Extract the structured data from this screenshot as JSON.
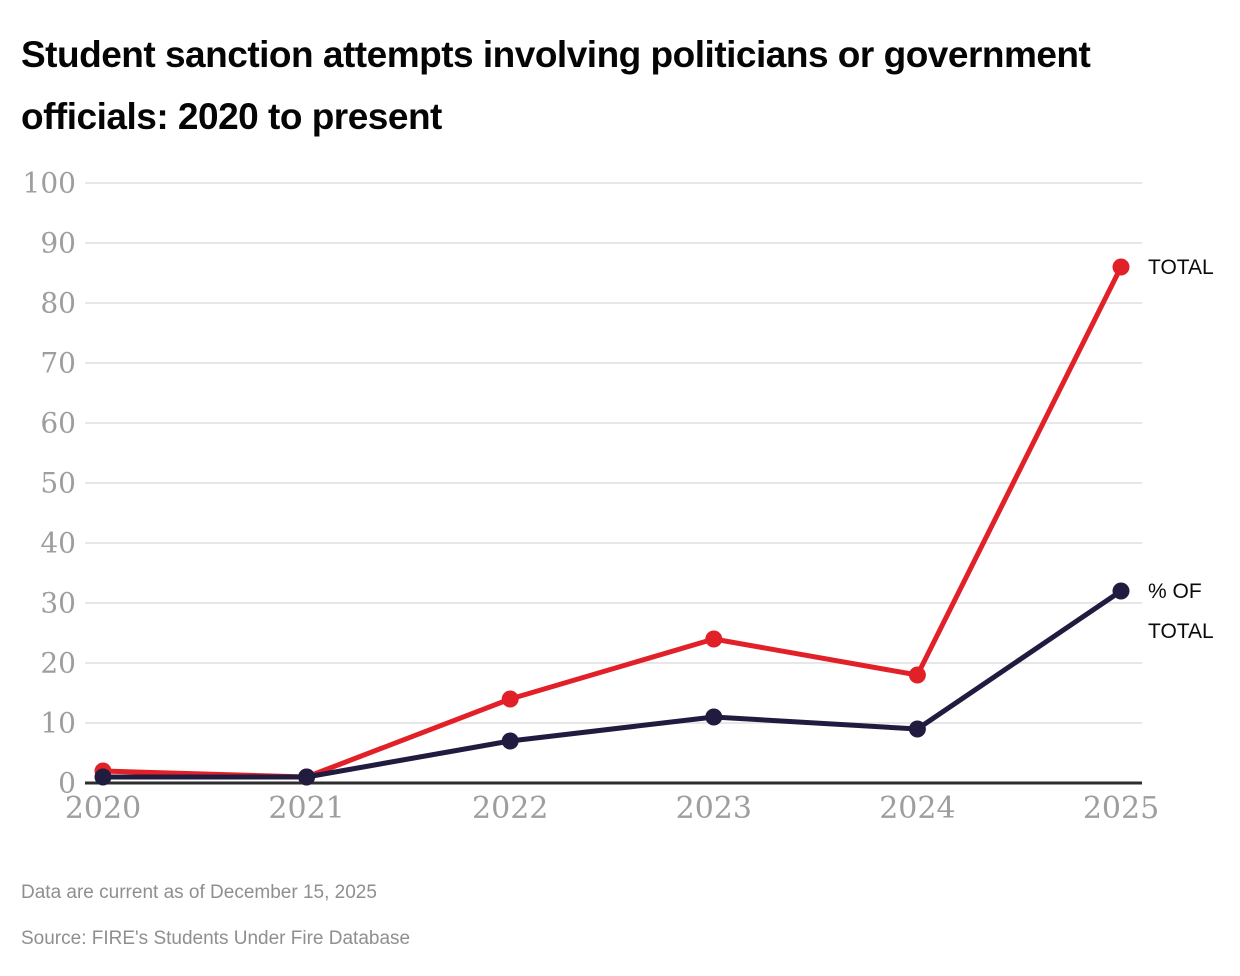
{
  "title": "Student sanction attempts involving politicians or government officials: 2020 to present",
  "footer": {
    "data_note": "Data are current as of December 15, 2025",
    "source_note": "Source: FIRE's Students Under Fire Database"
  },
  "colors": {
    "total_line": "#e22028",
    "pct_line": "#221b40",
    "gridline": "#e7e7e7",
    "axis_line": "#2e2e2e",
    "tick_label": "#9e9e9e",
    "series_label": "#0a0a0a",
    "title_text": "#050505",
    "footer_text": "#8f8f8f"
  },
  "chart_data": {
    "type": "line",
    "title": "Student sanction attempts involving politicians or government officials: 2020 to present",
    "xlabel": "",
    "ylabel": "",
    "categories": [
      "2020",
      "2021",
      "2022",
      "2023",
      "2024",
      "2025"
    ],
    "series": [
      {
        "name": "TOTAL",
        "label_lines": [
          "TOTAL"
        ],
        "color": "#e22028",
        "values": [
          2,
          1,
          14,
          24,
          18,
          86
        ]
      },
      {
        "name": "% OF TOTAL",
        "label_lines": [
          "% OF",
          "TOTAL"
        ],
        "color": "#221b40",
        "values": [
          1,
          1,
          7,
          11,
          9,
          32
        ]
      }
    ],
    "ylim": [
      0,
      100
    ],
    "yticks": [
      0,
      10,
      20,
      30,
      40,
      50,
      60,
      70,
      80,
      90,
      100
    ],
    "grid": "horizontal",
    "legend_position": "right-of-line-end",
    "notes": [
      "Data are current as of December 15, 2025",
      "Source: FIRE's Students Under Fire Database"
    ]
  }
}
